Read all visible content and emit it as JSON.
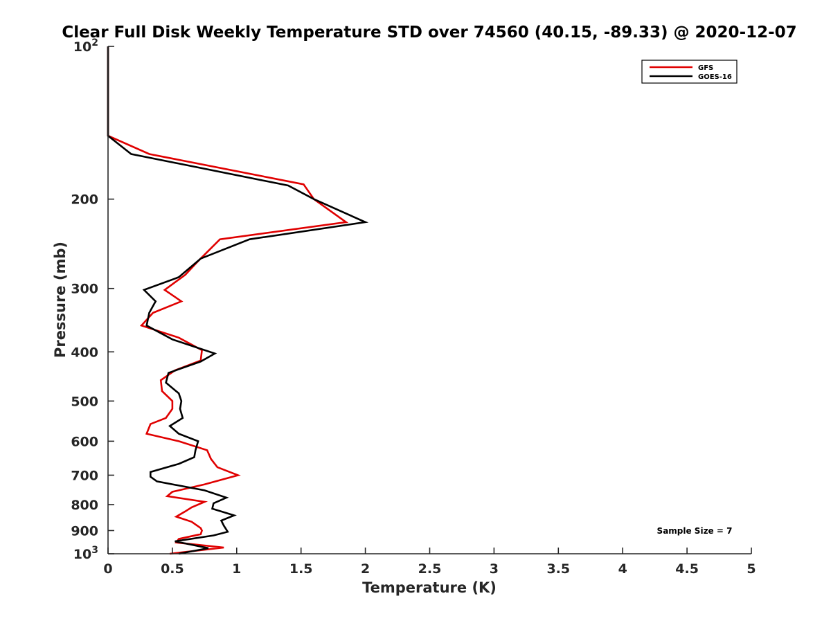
{
  "chart_data": {
    "type": "line",
    "title": "Clear Full Disk Weekly Temperature STD over 74560 (40.15, -89.33) @ 2020-12-07",
    "xlabel": "Temperature (K)",
    "ylabel": "Pressure (mb)",
    "xlim": [
      0,
      5
    ],
    "ylim": [
      100,
      1000
    ],
    "y_scale": "log",
    "y_reversed": true,
    "grid": false,
    "x_ticks": [
      0,
      0.5,
      1,
      1.5,
      2,
      2.5,
      3,
      3.5,
      4,
      4.5,
      5
    ],
    "x_tick_labels": [
      "0",
      "0.5",
      "1",
      "1.5",
      "2",
      "2.5",
      "3",
      "3.5",
      "4",
      "4.5",
      "5"
    ],
    "y_ticks": [
      200,
      300,
      400,
      500,
      600,
      700,
      800,
      900
    ],
    "y_tick_labels": [
      "200",
      "300",
      "400",
      "500",
      "600",
      "700",
      "800",
      "900"
    ],
    "y_tick_top": {
      "base": "10",
      "exp": "2",
      "value": 100
    },
    "y_tick_bottom": {
      "base": "10",
      "exp": "3",
      "value": 1000
    },
    "legend_position": "top-right",
    "annotation": "Sample Size = 7",
    "series": [
      {
        "name": "GFS",
        "color": "#e00000",
        "points": [
          [
            0,
            100
          ],
          [
            0,
            150
          ],
          [
            0.32,
            163
          ],
          [
            1.52,
            187
          ],
          [
            1.6,
            200
          ],
          [
            1.85,
            222
          ],
          [
            0.87,
            240
          ],
          [
            0.7,
            265
          ],
          [
            0.6,
            282
          ],
          [
            0.44,
            302
          ],
          [
            0.57,
            318
          ],
          [
            0.35,
            335
          ],
          [
            0.26,
            355
          ],
          [
            0.55,
            375
          ],
          [
            0.73,
            397
          ],
          [
            0.72,
            416
          ],
          [
            0.52,
            435
          ],
          [
            0.41,
            455
          ],
          [
            0.42,
            478
          ],
          [
            0.5,
            500
          ],
          [
            0.5,
            518
          ],
          [
            0.45,
            540
          ],
          [
            0.33,
            555
          ],
          [
            0.3,
            580
          ],
          [
            0.55,
            600
          ],
          [
            0.77,
            625
          ],
          [
            0.8,
            650
          ],
          [
            0.85,
            675
          ],
          [
            1.01,
            700
          ],
          [
            0.75,
            730
          ],
          [
            0.5,
            755
          ],
          [
            0.46,
            770
          ],
          [
            0.75,
            790
          ],
          [
            0.65,
            810
          ],
          [
            0.6,
            825
          ],
          [
            0.53,
            845
          ],
          [
            0.65,
            865
          ],
          [
            0.72,
            890
          ],
          [
            0.73,
            900
          ],
          [
            0.72,
            915
          ],
          [
            0.55,
            935
          ],
          [
            0.53,
            950
          ],
          [
            0.9,
            972
          ],
          [
            0.48,
            1000
          ]
        ]
      },
      {
        "name": "GOES-16",
        "color": "#000000",
        "points": [
          [
            0,
            100
          ],
          [
            0,
            150
          ],
          [
            0.18,
            163
          ],
          [
            1.4,
            188
          ],
          [
            1.6,
            200
          ],
          [
            2.0,
            222
          ],
          [
            1.1,
            240
          ],
          [
            0.72,
            262
          ],
          [
            0.55,
            285
          ],
          [
            0.28,
            302
          ],
          [
            0.37,
            318
          ],
          [
            0.32,
            335
          ],
          [
            0.3,
            355
          ],
          [
            0.5,
            378
          ],
          [
            0.83,
            403
          ],
          [
            0.72,
            418
          ],
          [
            0.47,
            440
          ],
          [
            0.45,
            460
          ],
          [
            0.55,
            483
          ],
          [
            0.57,
            500
          ],
          [
            0.56,
            518
          ],
          [
            0.58,
            540
          ],
          [
            0.48,
            560
          ],
          [
            0.55,
            580
          ],
          [
            0.7,
            600
          ],
          [
            0.68,
            625
          ],
          [
            0.67,
            645
          ],
          [
            0.55,
            665
          ],
          [
            0.33,
            690
          ],
          [
            0.33,
            705
          ],
          [
            0.38,
            720
          ],
          [
            0.75,
            750
          ],
          [
            0.92,
            775
          ],
          [
            0.82,
            795
          ],
          [
            0.81,
            815
          ],
          [
            0.98,
            840
          ],
          [
            0.88,
            860
          ],
          [
            0.9,
            880
          ],
          [
            0.93,
            905
          ],
          [
            0.82,
            920
          ],
          [
            0.52,
            945
          ],
          [
            0.78,
            975
          ],
          [
            0.55,
            1000
          ]
        ]
      }
    ]
  }
}
